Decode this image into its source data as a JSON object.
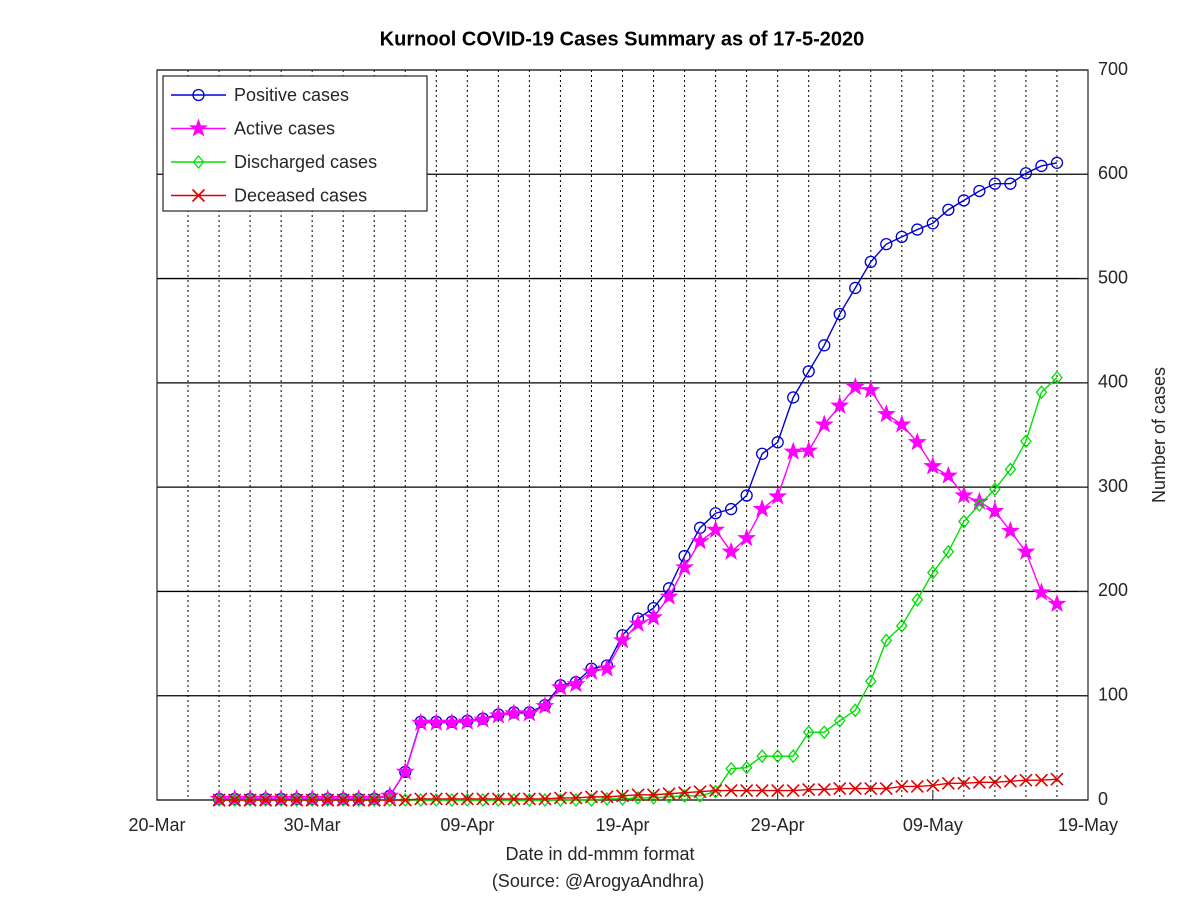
{
  "chart_data": {
    "type": "line",
    "title": "Kurnool COVID-19 Cases Summary as of 17-5-2020",
    "xlabel": "Date in dd-mmm format",
    "note": "(Source: @ArogyaAndhra)",
    "ylabel": "Number of cases",
    "x": [
      "2020-03-24",
      "2020-03-25",
      "2020-03-26",
      "2020-03-27",
      "2020-03-28",
      "2020-03-29",
      "2020-03-30",
      "2020-03-31",
      "2020-04-01",
      "2020-04-02",
      "2020-04-03",
      "2020-04-04",
      "2020-04-05",
      "2020-04-06",
      "2020-04-07",
      "2020-04-08",
      "2020-04-09",
      "2020-04-10",
      "2020-04-11",
      "2020-04-12",
      "2020-04-13",
      "2020-04-14",
      "2020-04-15",
      "2020-04-16",
      "2020-04-17",
      "2020-04-18",
      "2020-04-19",
      "2020-04-20",
      "2020-04-21",
      "2020-04-22",
      "2020-04-23",
      "2020-04-24",
      "2020-04-25",
      "2020-04-26",
      "2020-04-27",
      "2020-04-28",
      "2020-04-29",
      "2020-04-30",
      "2020-05-01",
      "2020-05-02",
      "2020-05-03",
      "2020-05-04",
      "2020-05-05",
      "2020-05-06",
      "2020-05-07",
      "2020-05-08",
      "2020-05-09",
      "2020-05-10",
      "2020-05-11",
      "2020-05-12",
      "2020-05-13",
      "2020-05-14",
      "2020-05-15",
      "2020-05-16",
      "2020-05-17"
    ],
    "series": [
      {
        "name": "Positive cases",
        "color": "#0000d0",
        "marker": "circle",
        "values": [
          1,
          1,
          1,
          1,
          1,
          1,
          1,
          1,
          1,
          1,
          1,
          4,
          27,
          75,
          75,
          75,
          76,
          78,
          82,
          84,
          84,
          91,
          110,
          113,
          126,
          129,
          158,
          174,
          184,
          203,
          234,
          261,
          275,
          279,
          292,
          332,
          343,
          386,
          411,
          436,
          466,
          491,
          516,
          533,
          540,
          547,
          553,
          566,
          575,
          584,
          591,
          591,
          601,
          608,
          611
        ]
      },
      {
        "name": "Active cases",
        "color": "#ff00ff",
        "marker": "star",
        "values": [
          1,
          1,
          1,
          1,
          1,
          1,
          1,
          1,
          1,
          1,
          1,
          4,
          27,
          74,
          74,
          74,
          75,
          77,
          81,
          83,
          83,
          90,
          108,
          111,
          123,
          126,
          153,
          169,
          175,
          195,
          223,
          248,
          259,
          238,
          251,
          279,
          291,
          334,
          335,
          360,
          378,
          396,
          393,
          370,
          360,
          343,
          320,
          311,
          292,
          286,
          277,
          258,
          238,
          199,
          188
        ]
      },
      {
        "name": "Discharged cases",
        "color": "#00e000",
        "marker": "diamond",
        "values": [
          0,
          0,
          0,
          0,
          0,
          0,
          0,
          0,
          0,
          0,
          0,
          0,
          0,
          0,
          0,
          0,
          0,
          0,
          0,
          0,
          0,
          0,
          0,
          0,
          0,
          1,
          1,
          2,
          2,
          3,
          4,
          4,
          8,
          30,
          31,
          42,
          42,
          42,
          65,
          65,
          76,
          86,
          114,
          153,
          167,
          192,
          218,
          238,
          267,
          283,
          298,
          317,
          344,
          391,
          405
        ]
      },
      {
        "name": "Deceased cases",
        "color": "#e00000",
        "marker": "x",
        "values": [
          0,
          0,
          0,
          0,
          0,
          0,
          0,
          0,
          0,
          0,
          0,
          0,
          0,
          1,
          1,
          1,
          1,
          1,
          1,
          1,
          1,
          1,
          2,
          2,
          3,
          3,
          4,
          5,
          5,
          6,
          7,
          8,
          9,
          9,
          9,
          9,
          9,
          9,
          10,
          10,
          11,
          11,
          11,
          11,
          13,
          13,
          14,
          16,
          16,
          17,
          17,
          18,
          19,
          19,
          20
        ]
      }
    ],
    "xlim": [
      "2020-03-20",
      "2020-05-19"
    ],
    "xticks": [
      {
        "value": "2020-03-20",
        "label": "20-Mar"
      },
      {
        "value": "2020-03-30",
        "label": "30-Mar"
      },
      {
        "value": "2020-04-09",
        "label": "09-Apr"
      },
      {
        "value": "2020-04-19",
        "label": "19-Apr"
      },
      {
        "value": "2020-04-29",
        "label": "29-Apr"
      },
      {
        "value": "2020-05-09",
        "label": "09-May"
      },
      {
        "value": "2020-05-19",
        "label": "19-May"
      }
    ],
    "xminor_step_days": 2,
    "ylim": [
      0,
      700
    ],
    "yticks": [
      0,
      100,
      200,
      300,
      400,
      500,
      600,
      700
    ],
    "yaxis_side": "right",
    "grid": true,
    "legend": "northwest"
  }
}
